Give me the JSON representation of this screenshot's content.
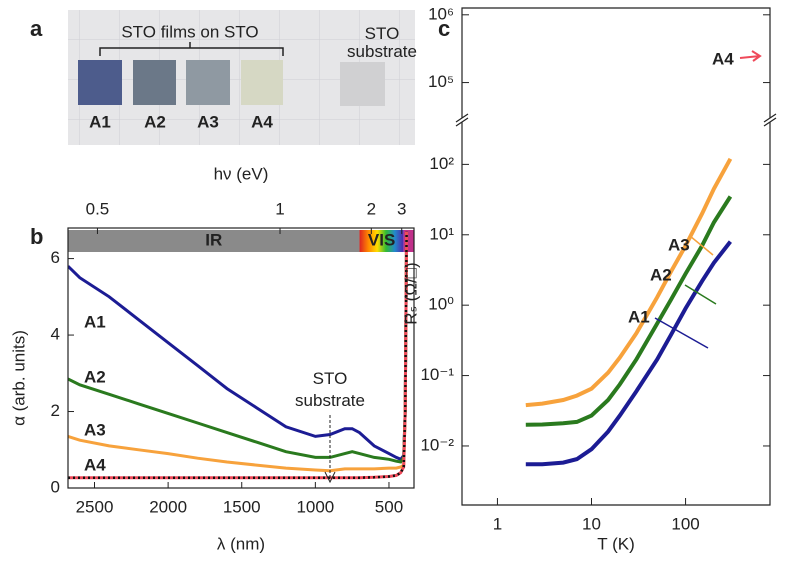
{
  "photo": {
    "panel": "a",
    "group_label": "STO films on STO",
    "substrate_label": "STO substrate",
    "samples": [
      {
        "name": "A1",
        "color": "#1c1c94"
      },
      {
        "name": "A2",
        "color": "#2a7a1e"
      },
      {
        "name": "A3",
        "color": "#f7a23c"
      },
      {
        "name": "A4",
        "color": "#ef4a5a"
      }
    ]
  },
  "chart_data": [
    {
      "type": "line",
      "panel": "b",
      "xlabel": "λ (nm)",
      "ylabel": "α (arb. units)",
      "x2label": "hν (eV)",
      "band_labels": [
        "IR",
        "VIS"
      ],
      "x": [
        2680,
        2600,
        2400,
        2200,
        2000,
        1800,
        1600,
        1400,
        1200,
        1000,
        900,
        800,
        750,
        700,
        600,
        500,
        450,
        420,
        400,
        390,
        380
      ],
      "xlim": [
        2680,
        330
      ],
      "xticks": [
        2500,
        2000,
        1500,
        1000,
        500
      ],
      "x2ticks": [
        0.5,
        1,
        2,
        3
      ],
      "ylim": [
        0,
        6.8
      ],
      "yticks": [
        0,
        2,
        4,
        6
      ],
      "series": [
        {
          "name": "A1",
          "color": "#1c1c94",
          "values": [
            5.8,
            5.5,
            5.0,
            4.4,
            3.8,
            3.2,
            2.6,
            2.1,
            1.6,
            1.35,
            1.4,
            1.55,
            1.55,
            1.45,
            1.1,
            0.9,
            0.8,
            0.75,
            0.85,
            2.0,
            6.7
          ]
        },
        {
          "name": "A2",
          "color": "#2a7a1e",
          "values": [
            2.85,
            2.7,
            2.45,
            2.2,
            1.95,
            1.7,
            1.45,
            1.2,
            0.95,
            0.8,
            0.8,
            0.9,
            0.95,
            0.9,
            0.8,
            0.75,
            0.7,
            0.68,
            0.8,
            2.0,
            6.7
          ]
        },
        {
          "name": "A3",
          "color": "#f7a23c",
          "values": [
            1.35,
            1.25,
            1.1,
            1.0,
            0.9,
            0.78,
            0.68,
            0.6,
            0.52,
            0.47,
            0.45,
            0.5,
            0.5,
            0.5,
            0.5,
            0.52,
            0.52,
            0.55,
            0.6,
            2.0,
            6.7
          ]
        },
        {
          "name": "A4",
          "color": "#ef4a5a",
          "values": [
            0.27,
            0.27,
            0.27,
            0.27,
            0.27,
            0.27,
            0.27,
            0.27,
            0.27,
            0.27,
            0.27,
            0.27,
            0.27,
            0.27,
            0.28,
            0.3,
            0.33,
            0.4,
            0.55,
            2.0,
            6.7
          ]
        },
        {
          "name": "STO substrate",
          "color": "#111111",
          "style": "dotted",
          "values": [
            0.27,
            0.27,
            0.27,
            0.27,
            0.27,
            0.27,
            0.27,
            0.27,
            0.27,
            0.27,
            0.27,
            0.27,
            0.27,
            0.27,
            0.28,
            0.3,
            0.33,
            0.4,
            0.55,
            2.0,
            6.7
          ]
        }
      ]
    },
    {
      "type": "line",
      "panel": "c",
      "xlabel": "T (K)",
      "ylabel": "Rₛ (Ω/□)",
      "xlog": true,
      "ylog": true,
      "x": [
        2,
        3,
        5,
        7,
        10,
        15,
        20,
        30,
        50,
        70,
        100,
        150,
        200,
        300
      ],
      "xlim": [
        0.42,
        790
      ],
      "xticks": [
        1,
        10,
        100
      ],
      "ylim": [
        0.00145,
        1260000
      ],
      "ybreak": [
        400,
        30000
      ],
      "yticks": [
        {
          "value": 0.01,
          "label": "10⁻²"
        },
        {
          "value": 0.1,
          "label": "10⁻¹"
        },
        {
          "value": 1,
          "label": "10⁰"
        },
        {
          "value": 10,
          "label": "10¹"
        },
        {
          "value": 100,
          "label": "10²"
        },
        {
          "value": 100000,
          "label": "10⁵"
        },
        {
          "value": 1000000,
          "label": "10⁶"
        }
      ],
      "annotations": [
        {
          "text": "A4",
          "color": "#ef4a5a"
        }
      ],
      "series": [
        {
          "name": "A1",
          "color": "#1c1c94",
          "values": [
            0.0055,
            0.0055,
            0.0058,
            0.0065,
            0.009,
            0.016,
            0.027,
            0.06,
            0.17,
            0.38,
            0.9,
            2.2,
            4,
            8
          ]
        },
        {
          "name": "A2",
          "color": "#2a7a1e",
          "values": [
            0.02,
            0.0202,
            0.021,
            0.022,
            0.027,
            0.045,
            0.075,
            0.17,
            0.55,
            1.2,
            2.8,
            7,
            15,
            35
          ]
        },
        {
          "name": "A3",
          "color": "#f7a23c",
          "values": [
            0.038,
            0.04,
            0.045,
            0.052,
            0.065,
            0.11,
            0.18,
            0.4,
            1.3,
            3,
            7,
            20,
            45,
            120
          ]
        }
      ]
    }
  ]
}
